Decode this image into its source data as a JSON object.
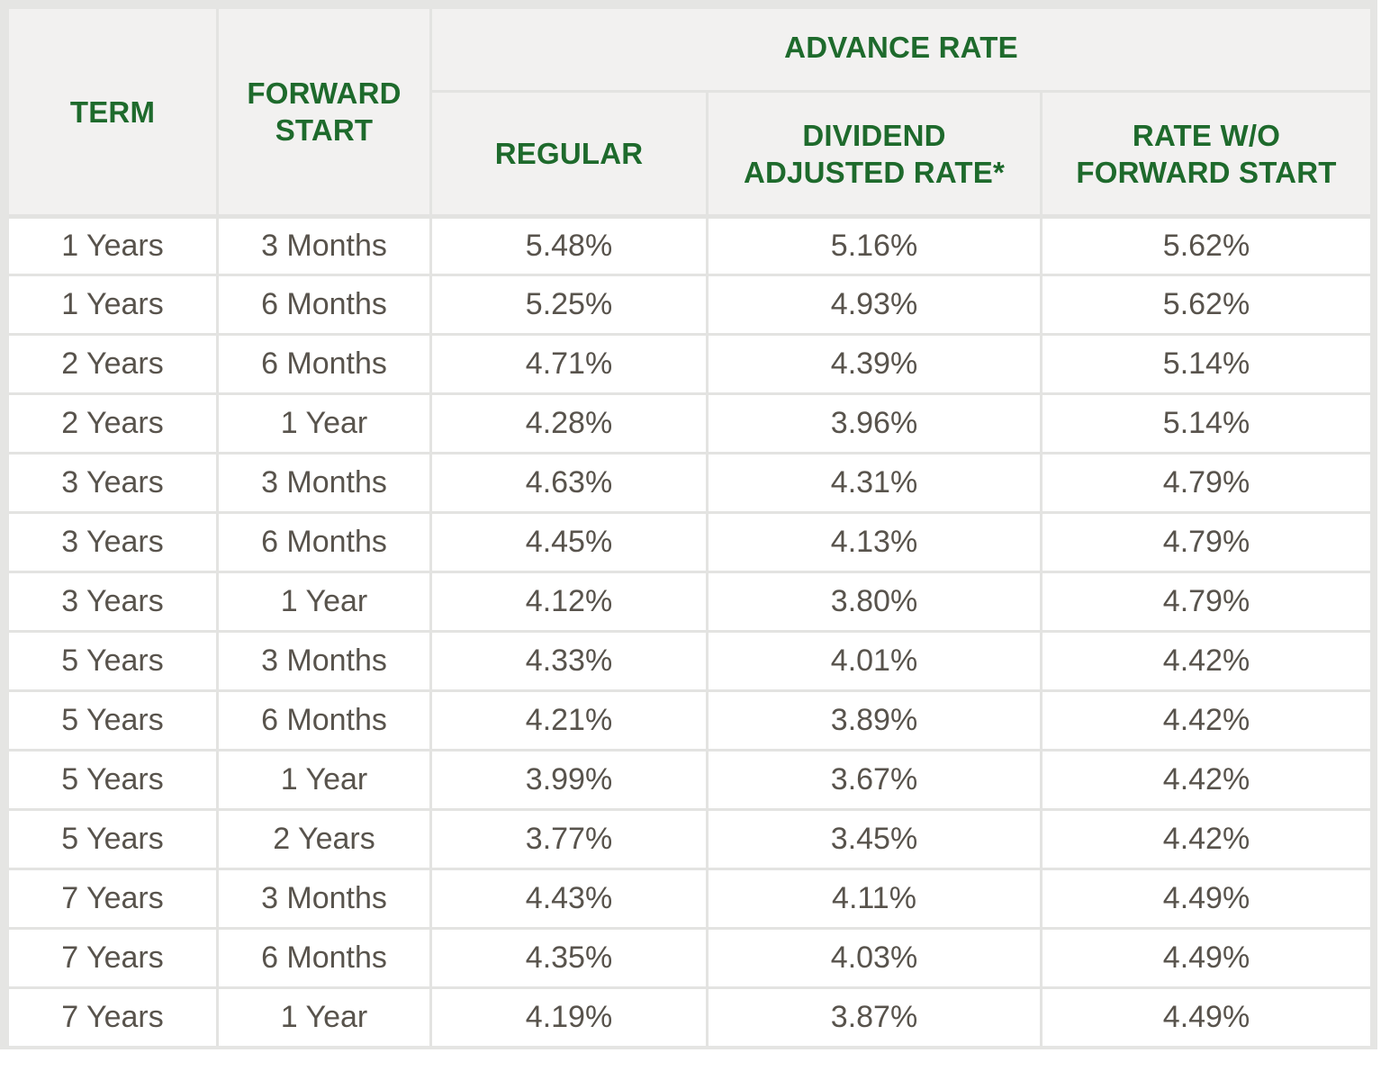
{
  "table": {
    "headers": {
      "term": "TERM",
      "forward_start": [
        "FORWARD",
        "START"
      ],
      "advance_rate": "ADVANCE RATE",
      "regular": "REGULAR",
      "dividend_adjusted": [
        "DIVIDEND",
        "ADJUSTED RATE*"
      ],
      "rate_wo_forward": [
        "RATE W/O",
        "FORWARD START"
      ]
    },
    "rows": [
      {
        "term": "1 Years",
        "forward_start": "3 Months",
        "regular": "5.48%",
        "dividend_adjusted": "5.16%",
        "rate_wo_forward": "5.62%"
      },
      {
        "term": "1 Years",
        "forward_start": "6 Months",
        "regular": "5.25%",
        "dividend_adjusted": "4.93%",
        "rate_wo_forward": "5.62%"
      },
      {
        "term": "2 Years",
        "forward_start": "6 Months",
        "regular": "4.71%",
        "dividend_adjusted": "4.39%",
        "rate_wo_forward": "5.14%"
      },
      {
        "term": "2 Years",
        "forward_start": "1 Year",
        "regular": "4.28%",
        "dividend_adjusted": "3.96%",
        "rate_wo_forward": "5.14%"
      },
      {
        "term": "3 Years",
        "forward_start": "3 Months",
        "regular": "4.63%",
        "dividend_adjusted": "4.31%",
        "rate_wo_forward": "4.79%"
      },
      {
        "term": "3 Years",
        "forward_start": "6 Months",
        "regular": "4.45%",
        "dividend_adjusted": "4.13%",
        "rate_wo_forward": "4.79%"
      },
      {
        "term": "3 Years",
        "forward_start": "1 Year",
        "regular": "4.12%",
        "dividend_adjusted": "3.80%",
        "rate_wo_forward": "4.79%"
      },
      {
        "term": "5 Years",
        "forward_start": "3 Months",
        "regular": "4.33%",
        "dividend_adjusted": "4.01%",
        "rate_wo_forward": "4.42%"
      },
      {
        "term": "5 Years",
        "forward_start": "6 Months",
        "regular": "4.21%",
        "dividend_adjusted": "3.89%",
        "rate_wo_forward": "4.42%"
      },
      {
        "term": "5 Years",
        "forward_start": "1 Year",
        "regular": "3.99%",
        "dividend_adjusted": "3.67%",
        "rate_wo_forward": "4.42%"
      },
      {
        "term": "5 Years",
        "forward_start": "2 Years",
        "regular": "3.77%",
        "dividend_adjusted": "3.45%",
        "rate_wo_forward": "4.42%"
      },
      {
        "term": "7 Years",
        "forward_start": "3 Months",
        "regular": "4.43%",
        "dividend_adjusted": "4.11%",
        "rate_wo_forward": "4.49%"
      },
      {
        "term": "7 Years",
        "forward_start": "6 Months",
        "regular": "4.35%",
        "dividend_adjusted": "4.03%",
        "rate_wo_forward": "4.49%"
      },
      {
        "term": "7 Years",
        "forward_start": "1 Year",
        "regular": "4.19%",
        "dividend_adjusted": "3.87%",
        "rate_wo_forward": "4.49%"
      }
    ]
  },
  "colors": {
    "header_text": "#1e6a2c",
    "body_text": "#58534c",
    "header_bg": "#f2f1f0",
    "grid": "#e3e3e1"
  }
}
